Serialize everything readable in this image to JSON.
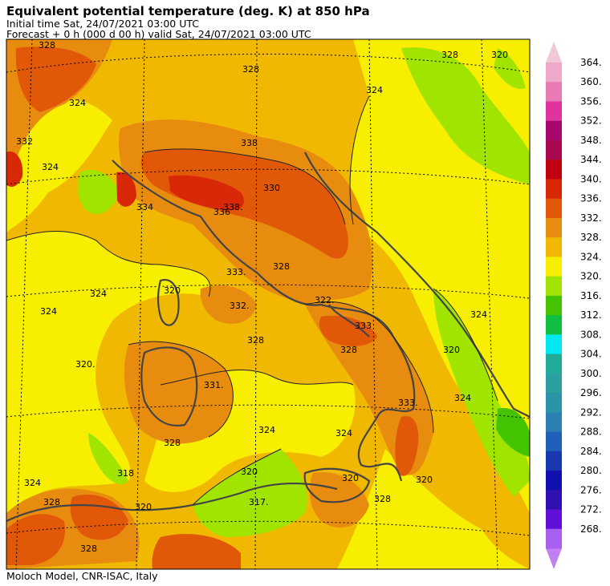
{
  "header": {
    "title": "Equivalent potential temperature (deg. K) at 850 hPa",
    "initial_time": "Initial time  Sat, 24/07/2021  03:00 UTC",
    "forecast": "Forecast  +   0 h  (000 d 00 h)  valid Sat, 24/07/2021 03:00 UTC"
  },
  "footer": "Moloch Model, CNR-ISAC, Italy",
  "colorbar": {
    "levels": [
      {
        "label": "364.",
        "color": "#f0a8c8"
      },
      {
        "label": "360.",
        "color": "#e87ab4"
      },
      {
        "label": "356.",
        "color": "#e0349c"
      },
      {
        "label": "352.",
        "color": "#a8086c"
      },
      {
        "label": "348.",
        "color": "#a8084c"
      },
      {
        "label": "344.",
        "color": "#c00010"
      },
      {
        "label": "340.",
        "color": "#d82808"
      },
      {
        "label": "336.",
        "color": "#e05808"
      },
      {
        "label": "332.",
        "color": "#e88c10"
      },
      {
        "label": "328.",
        "color": "#f0b800"
      },
      {
        "label": "324.",
        "color": "#f8ee00"
      },
      {
        "label": "320.",
        "color": "#a0e400"
      },
      {
        "label": "316.",
        "color": "#44c400"
      },
      {
        "label": "312.",
        "color": "#10c040"
      },
      {
        "label": "308.",
        "color": "#00e8f0"
      },
      {
        "label": "304.",
        "color": "#20ac98"
      },
      {
        "label": "300.",
        "color": "#2aa0a0"
      },
      {
        "label": "296.",
        "color": "#2a94a8"
      },
      {
        "label": "292.",
        "color": "#2a80b0"
      },
      {
        "label": "288.",
        "color": "#2060b8"
      },
      {
        "label": "284.",
        "color": "#1838b0"
      },
      {
        "label": "280.",
        "color": "#1010b0"
      },
      {
        "label": "276.",
        "color": "#3010b0"
      },
      {
        "label": "272.",
        "color": "#6010d8"
      },
      {
        "label": "268.",
        "color": "#a860f0"
      }
    ],
    "arrow_top_color": "#f0c8d8",
    "arrow_bottom_color": "#c080f0"
  },
  "map": {
    "background_color": "#f0b800",
    "contour_labels": [
      "324",
      "328",
      "332",
      "324",
      "328",
      "338",
      "336",
      "334",
      "338.",
      "330",
      "324",
      "328",
      "320",
      "333.",
      "332.",
      "322.",
      "328",
      "333",
      "324",
      "320",
      "331.",
      "328",
      "324",
      "320",
      "318",
      "317.",
      "320",
      "324",
      "328",
      "328",
      "333.",
      "320",
      "328",
      "320",
      "324",
      "324",
      "320.",
      "324",
      "324",
      "328",
      "328",
      "320"
    ]
  }
}
